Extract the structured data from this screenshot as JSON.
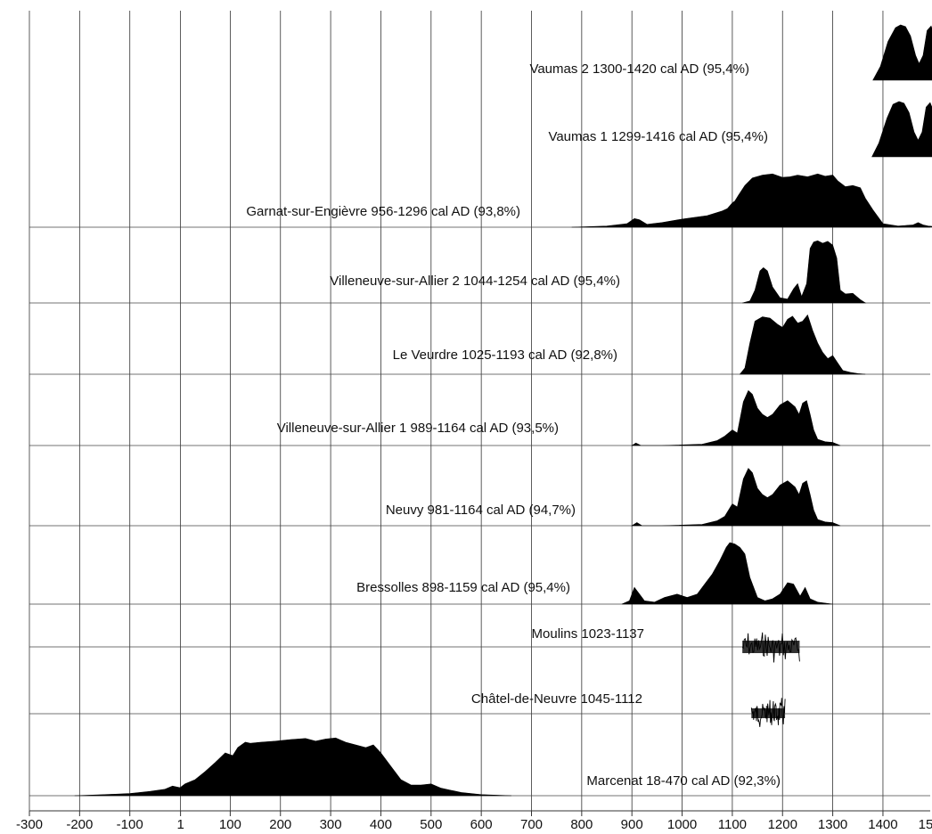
{
  "chart_data": {
    "type": "area",
    "title": "",
    "xlabel": "",
    "ylabel": "",
    "xlim": [
      -300,
      1620
    ],
    "grid": true,
    "x_ticks": [
      -300,
      -200,
      -100,
      1,
      100,
      200,
      300,
      400,
      500,
      600,
      700,
      800,
      900,
      1000,
      1100,
      1200,
      1300,
      1400,
      1500
    ],
    "x_tick_labels": [
      "-300",
      "-200",
      "-100",
      "1",
      "100",
      "200",
      "300",
      "400",
      "500",
      "600",
      "700",
      "800",
      "900",
      "1000",
      "1100",
      "1200",
      "1300",
      "1400",
      "1500"
    ],
    "series": [
      {
        "name": "Vaumas 2 1300-1420 cal AD (95,4%)",
        "kind": "density",
        "x": [
          1380,
          1395,
          1410,
          1425,
          1435,
          1445,
          1455,
          1465,
          1472,
          1480,
          1488,
          1496,
          1503,
          1512,
          1525,
          1540
        ],
        "y": [
          0,
          0.25,
          0.7,
          0.95,
          1.0,
          0.97,
          0.8,
          0.45,
          0.3,
          0.45,
          0.9,
          0.98,
          0.8,
          0.3,
          0.06,
          0
        ]
      },
      {
        "name": "Vaumas 1 1299-1416 cal AD (95,4%)",
        "kind": "density",
        "x": [
          1378,
          1392,
          1408,
          1420,
          1432,
          1442,
          1452,
          1462,
          1470,
          1478,
          1486,
          1494,
          1502,
          1510,
          1525,
          1540
        ],
        "y": [
          0,
          0.25,
          0.7,
          0.95,
          1.0,
          0.97,
          0.8,
          0.45,
          0.3,
          0.45,
          0.9,
          0.98,
          0.8,
          0.3,
          0.06,
          0
        ]
      },
      {
        "name": "Garnat-sur-Engièvre 956-1296 cal AD (93,8%)",
        "kind": "density",
        "x": [
          780,
          850,
          890,
          905,
          915,
          930,
          960,
          1000,
          1050,
          1080,
          1090,
          1100,
          1105,
          1112,
          1125,
          1140,
          1160,
          1180,
          1200,
          1215,
          1230,
          1250,
          1270,
          1285,
          1300,
          1310,
          1325,
          1340,
          1355,
          1365,
          1380,
          1400,
          1430,
          1460,
          1470,
          1480,
          1490,
          1520
        ],
        "y": [
          0,
          0.02,
          0.06,
          0.15,
          0.13,
          0.05,
          0.08,
          0.14,
          0.2,
          0.28,
          0.32,
          0.42,
          0.45,
          0.55,
          0.72,
          0.85,
          0.9,
          0.92,
          0.86,
          0.87,
          0.9,
          0.87,
          0.92,
          0.88,
          0.9,
          0.8,
          0.7,
          0.72,
          0.68,
          0.5,
          0.3,
          0.06,
          0.02,
          0.04,
          0.08,
          0.04,
          0.02,
          0
        ]
      },
      {
        "name": "Villeneuve-sur-Allier 2 1044-1254 cal AD (95,4%)",
        "kind": "density",
        "x": [
          1120,
          1135,
          1145,
          1155,
          1162,
          1170,
          1180,
          1195,
          1210,
          1222,
          1230,
          1238,
          1248,
          1255,
          1262,
          1270,
          1280,
          1290,
          1300,
          1308,
          1315,
          1325,
          1340,
          1355,
          1365
        ],
        "y": [
          0,
          0.03,
          0.2,
          0.5,
          0.55,
          0.5,
          0.25,
          0.08,
          0.06,
          0.22,
          0.3,
          0.1,
          0.3,
          0.85,
          0.95,
          0.97,
          0.93,
          0.96,
          0.9,
          0.7,
          0.2,
          0.14,
          0.15,
          0.05,
          0
        ]
      },
      {
        "name": "Le Veurdre 1025-1193 cal AD (92,8%)",
        "kind": "density",
        "x": [
          1115,
          1125,
          1135,
          1145,
          1160,
          1175,
          1190,
          1200,
          1210,
          1220,
          1230,
          1240,
          1250,
          1260,
          1270,
          1280,
          1290,
          1300,
          1310,
          1320,
          1335,
          1350,
          1365
        ],
        "y": [
          0,
          0.1,
          0.5,
          0.85,
          0.92,
          0.9,
          0.8,
          0.75,
          0.88,
          0.93,
          0.82,
          0.85,
          0.95,
          0.7,
          0.5,
          0.35,
          0.25,
          0.3,
          0.18,
          0.06,
          0.03,
          0.01,
          0
        ]
      },
      {
        "name": "Villeneuve-sur-Allier 1 989-1164 cal AD (93,5%)",
        "kind": "density",
        "x": [
          900,
          908,
          918,
          960,
          1040,
          1070,
          1085,
          1100,
          1110,
          1122,
          1132,
          1140,
          1150,
          1160,
          1170,
          1180,
          1195,
          1210,
          1225,
          1233,
          1240,
          1248,
          1255,
          1262,
          1270,
          1285,
          1300,
          1315
        ],
        "y": [
          0,
          0.04,
          0,
          0,
          0.02,
          0.08,
          0.15,
          0.25,
          0.2,
          0.7,
          0.88,
          0.82,
          0.6,
          0.5,
          0.45,
          0.5,
          0.65,
          0.72,
          0.62,
          0.5,
          0.68,
          0.72,
          0.5,
          0.25,
          0.1,
          0.06,
          0.05,
          0
        ]
      },
      {
        "name": "Neuvy 981-1164 cal AD (94,7%)",
        "kind": "density",
        "x": [
          900,
          910,
          920,
          960,
          1040,
          1070,
          1085,
          1100,
          1110,
          1122,
          1132,
          1140,
          1150,
          1160,
          1170,
          1180,
          1195,
          1210,
          1225,
          1233,
          1240,
          1248,
          1255,
          1262,
          1270,
          1285,
          1300,
          1315
        ],
        "y": [
          0,
          0.05,
          0,
          0,
          0.02,
          0.08,
          0.15,
          0.35,
          0.3,
          0.75,
          0.92,
          0.85,
          0.6,
          0.5,
          0.45,
          0.5,
          0.65,
          0.72,
          0.62,
          0.5,
          0.68,
          0.72,
          0.5,
          0.25,
          0.1,
          0.06,
          0.05,
          0
        ]
      },
      {
        "name": "Bressolles 898-1159 cal AD (95,4%)",
        "kind": "density",
        "x": [
          880,
          895,
          905,
          915,
          925,
          945,
          965,
          990,
          1010,
          1030,
          1045,
          1060,
          1075,
          1088,
          1095,
          1105,
          1115,
          1125,
          1135,
          1150,
          1165,
          1180,
          1195,
          1210,
          1222,
          1235,
          1245,
          1255,
          1270,
          1300
        ],
        "y": [
          0,
          0.05,
          0.25,
          0.15,
          0.05,
          0.03,
          0.1,
          0.15,
          0.1,
          0.15,
          0.3,
          0.45,
          0.65,
          0.85,
          0.92,
          0.9,
          0.85,
          0.75,
          0.4,
          0.1,
          0.05,
          0.08,
          0.15,
          0.32,
          0.3,
          0.12,
          0.25,
          0.08,
          0.03,
          0
        ]
      },
      {
        "name": "Moulins 1023-1137",
        "kind": "wiggle",
        "range": [
          1023,
          1137
        ]
      },
      {
        "name": "Châtel-de-Neuvre 1045-1112",
        "kind": "wiggle",
        "range": [
          1045,
          1112
        ]
      },
      {
        "name": "Marcenat 18-470 cal AD (92,3%)",
        "kind": "density",
        "x": [
          -210,
          -150,
          -100,
          -60,
          -30,
          -15,
          0,
          10,
          30,
          50,
          70,
          90,
          105,
          115,
          130,
          140,
          160,
          190,
          220,
          250,
          270,
          290,
          310,
          330,
          350,
          370,
          385,
          400,
          420,
          440,
          460,
          480,
          500,
          520,
          540,
          560,
          600,
          660
        ],
        "y": [
          0,
          0.02,
          0.04,
          0.08,
          0.12,
          0.18,
          0.15,
          0.22,
          0.3,
          0.45,
          0.62,
          0.8,
          0.75,
          0.9,
          1.0,
          0.98,
          1.0,
          1.02,
          1.05,
          1.07,
          1.02,
          1.06,
          1.08,
          1.0,
          0.95,
          0.9,
          0.95,
          0.8,
          0.55,
          0.3,
          0.2,
          0.2,
          0.22,
          0.14,
          0.1,
          0.06,
          0.02,
          0
        ]
      }
    ]
  }
}
